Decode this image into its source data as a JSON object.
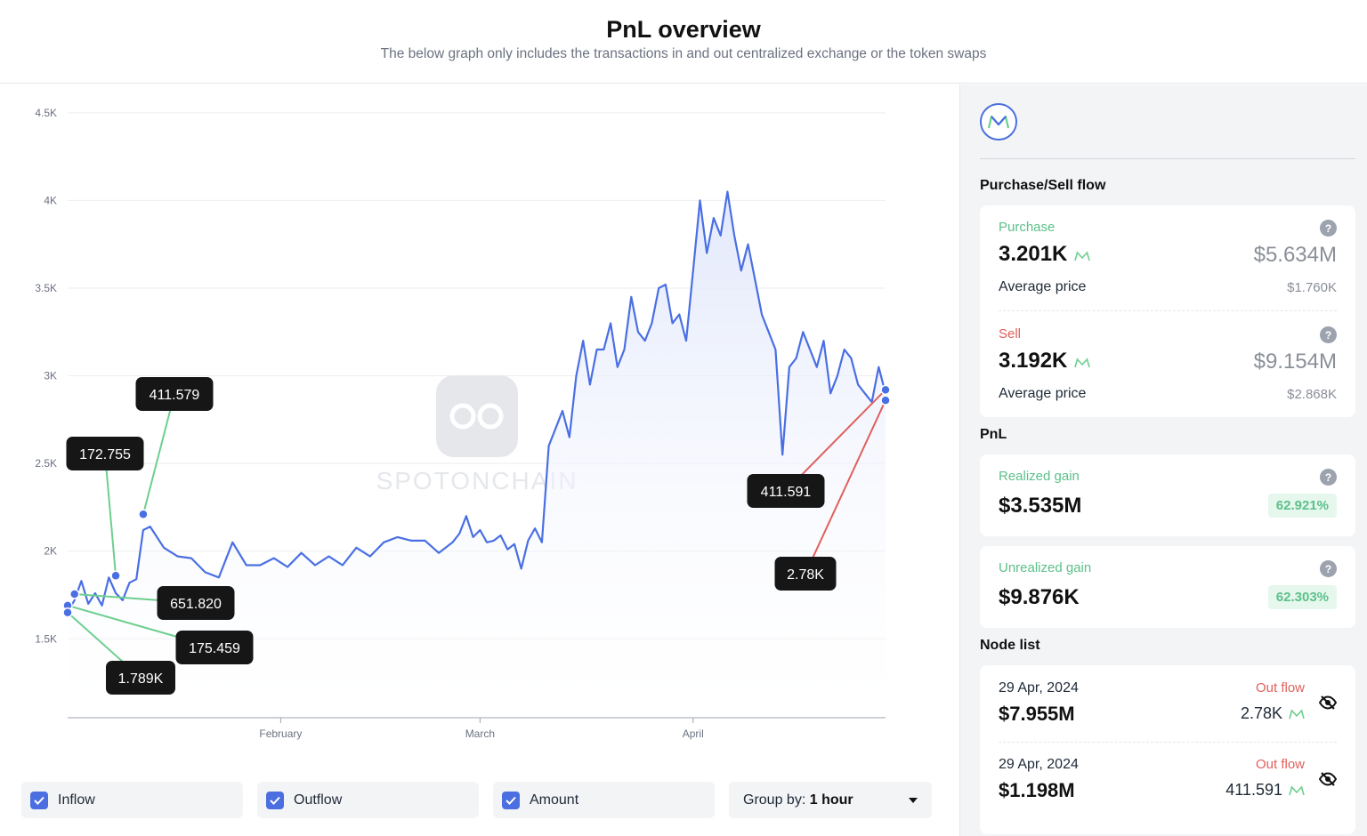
{
  "header": {
    "title": "PnL overview",
    "subtitle": "The below graph only includes the transactions in and out centralized exchange or the token swaps"
  },
  "watermark": "SPOTONCHAIN",
  "chart_data": {
    "type": "line",
    "title": "",
    "xlabel": "",
    "ylabel": "",
    "x_ticks": [
      "February",
      "March",
      "April"
    ],
    "y_ticks": [
      "1.5K",
      "2K",
      "2.5K",
      "3K",
      "3.5K",
      "4K",
      "4.5K"
    ],
    "ylim": [
      1050,
      4560
    ],
    "grid": "horizontal",
    "series": [
      {
        "x": [
          "2024-01-01",
          "2024-01-02",
          "2024-01-03",
          "2024-01-04",
          "2024-01-05",
          "2024-01-06",
          "2024-01-07",
          "2024-01-08",
          "2024-01-09",
          "2024-01-10",
          "2024-01-11",
          "2024-01-12",
          "2024-01-13",
          "2024-01-15",
          "2024-01-17",
          "2024-01-19",
          "2024-01-21",
          "2024-01-23",
          "2024-01-25",
          "2024-01-27",
          "2024-01-29",
          "2024-01-31",
          "2024-02-02",
          "2024-02-04",
          "2024-02-06",
          "2024-02-08",
          "2024-02-10",
          "2024-02-12",
          "2024-02-14",
          "2024-02-16",
          "2024-02-18",
          "2024-02-20",
          "2024-02-22",
          "2024-02-24",
          "2024-02-26",
          "2024-02-27",
          "2024-02-28",
          "2024-02-29",
          "2024-03-01",
          "2024-03-02",
          "2024-03-03",
          "2024-03-04",
          "2024-03-05",
          "2024-03-06",
          "2024-03-07",
          "2024-03-08",
          "2024-03-09",
          "2024-03-10",
          "2024-03-11",
          "2024-03-12",
          "2024-03-13",
          "2024-03-14",
          "2024-03-15",
          "2024-03-16",
          "2024-03-17",
          "2024-03-18",
          "2024-03-19",
          "2024-03-20",
          "2024-03-21",
          "2024-03-22",
          "2024-03-23",
          "2024-03-24",
          "2024-03-25",
          "2024-03-26",
          "2024-03-27",
          "2024-03-28",
          "2024-03-29",
          "2024-03-30",
          "2024-03-31",
          "2024-04-01",
          "2024-04-02",
          "2024-04-03",
          "2024-04-04",
          "2024-04-05",
          "2024-04-06",
          "2024-04-07",
          "2024-04-08",
          "2024-04-09",
          "2024-04-10",
          "2024-04-11",
          "2024-04-12",
          "2024-04-13",
          "2024-04-14",
          "2024-04-15",
          "2024-04-16",
          "2024-04-17",
          "2024-04-18",
          "2024-04-19",
          "2024-04-20",
          "2024-04-21",
          "2024-04-22",
          "2024-04-23",
          "2024-04-24",
          "2024-04-25",
          "2024-04-26",
          "2024-04-27",
          "2024-04-28",
          "2024-04-29"
        ],
        "values": [
          1650,
          1720,
          1830,
          1700,
          1760,
          1690,
          1850,
          1760,
          1720,
          1820,
          1840,
          2120,
          2140,
          2020,
          1970,
          1960,
          1880,
          1850,
          2050,
          1920,
          1920,
          1960,
          1910,
          1990,
          1920,
          1970,
          1920,
          2020,
          1970,
          2050,
          2080,
          2060,
          2060,
          1990,
          2050,
          2100,
          2200,
          2080,
          2120,
          2050,
          2060,
          2090,
          2010,
          2040,
          1900,
          2060,
          2130,
          2050,
          2600,
          2700,
          2800,
          2650,
          3000,
          3200,
          2950,
          3150,
          3150,
          3300,
          3050,
          3150,
          3450,
          3250,
          3200,
          3300,
          3500,
          3520,
          3300,
          3350,
          3200,
          3600,
          4000,
          3700,
          3900,
          3800,
          4050,
          3800,
          3600,
          3750,
          3550,
          3350,
          3250,
          3150,
          2550,
          3050,
          3100,
          3250,
          3150,
          3050,
          3200,
          2900,
          3000,
          3150,
          3100,
          2950,
          2900,
          2850,
          3050,
          2900
        ]
      }
    ],
    "annotations": [
      {
        "label": "411.579",
        "x": "2024-01-12",
        "y": 2210,
        "color": "#6dcf8e"
      },
      {
        "label": "172.755",
        "x": "2024-01-08",
        "y": 1860,
        "color": "#6dcf8e"
      },
      {
        "label": "651.820",
        "x": "2024-01-02",
        "y": 1755,
        "color": "#6dcf8e"
      },
      {
        "label": "175.459",
        "x": "2024-01-01",
        "y": 1690,
        "color": "#6dcf8e"
      },
      {
        "label": "1.789K",
        "x": "2024-01-01",
        "y": 1650,
        "color": "#6dcf8e"
      },
      {
        "label": "411.591",
        "x": "2024-04-29",
        "y": 2920,
        "color": "#e0605c"
      },
      {
        "label": "2.78K",
        "x": "2024-04-29",
        "y": 2860,
        "color": "#e0605c"
      }
    ]
  },
  "controls": {
    "inflow": "Inflow",
    "outflow": "Outflow",
    "amount": "Amount",
    "group_by_label": "Group by:",
    "group_by_value": "1 hour"
  },
  "sidebar": {
    "purchase_sell_title": "Purchase/Sell flow",
    "purchase": {
      "label": "Purchase",
      "amount": "3.201K",
      "usd": "$5.634M",
      "avg_label": "Average price",
      "avg_value": "$1.760K"
    },
    "sell": {
      "label": "Sell",
      "amount": "3.192K",
      "usd": "$9.154M",
      "avg_label": "Average price",
      "avg_value": "$2.868K"
    },
    "pnl_title": "PnL",
    "realized": {
      "label": "Realized gain",
      "value": "$3.535M",
      "pct": "62.921%"
    },
    "unrealized": {
      "label": "Unrealized gain",
      "value": "$9.876K",
      "pct": "62.303%"
    },
    "node_list_title": "Node list",
    "nodes": [
      {
        "date": "29 Apr, 2024",
        "usd": "$7.955M",
        "type": "Out flow",
        "amount": "2.78K"
      },
      {
        "date": "29 Apr, 2024",
        "usd": "$1.198M",
        "type": "Out flow",
        "amount": "411.591"
      }
    ]
  },
  "colors": {
    "line": "#4a6fe3",
    "inflow": "#6dcf8e",
    "outflow": "#e0605c",
    "accent": "#4b6fe0"
  }
}
